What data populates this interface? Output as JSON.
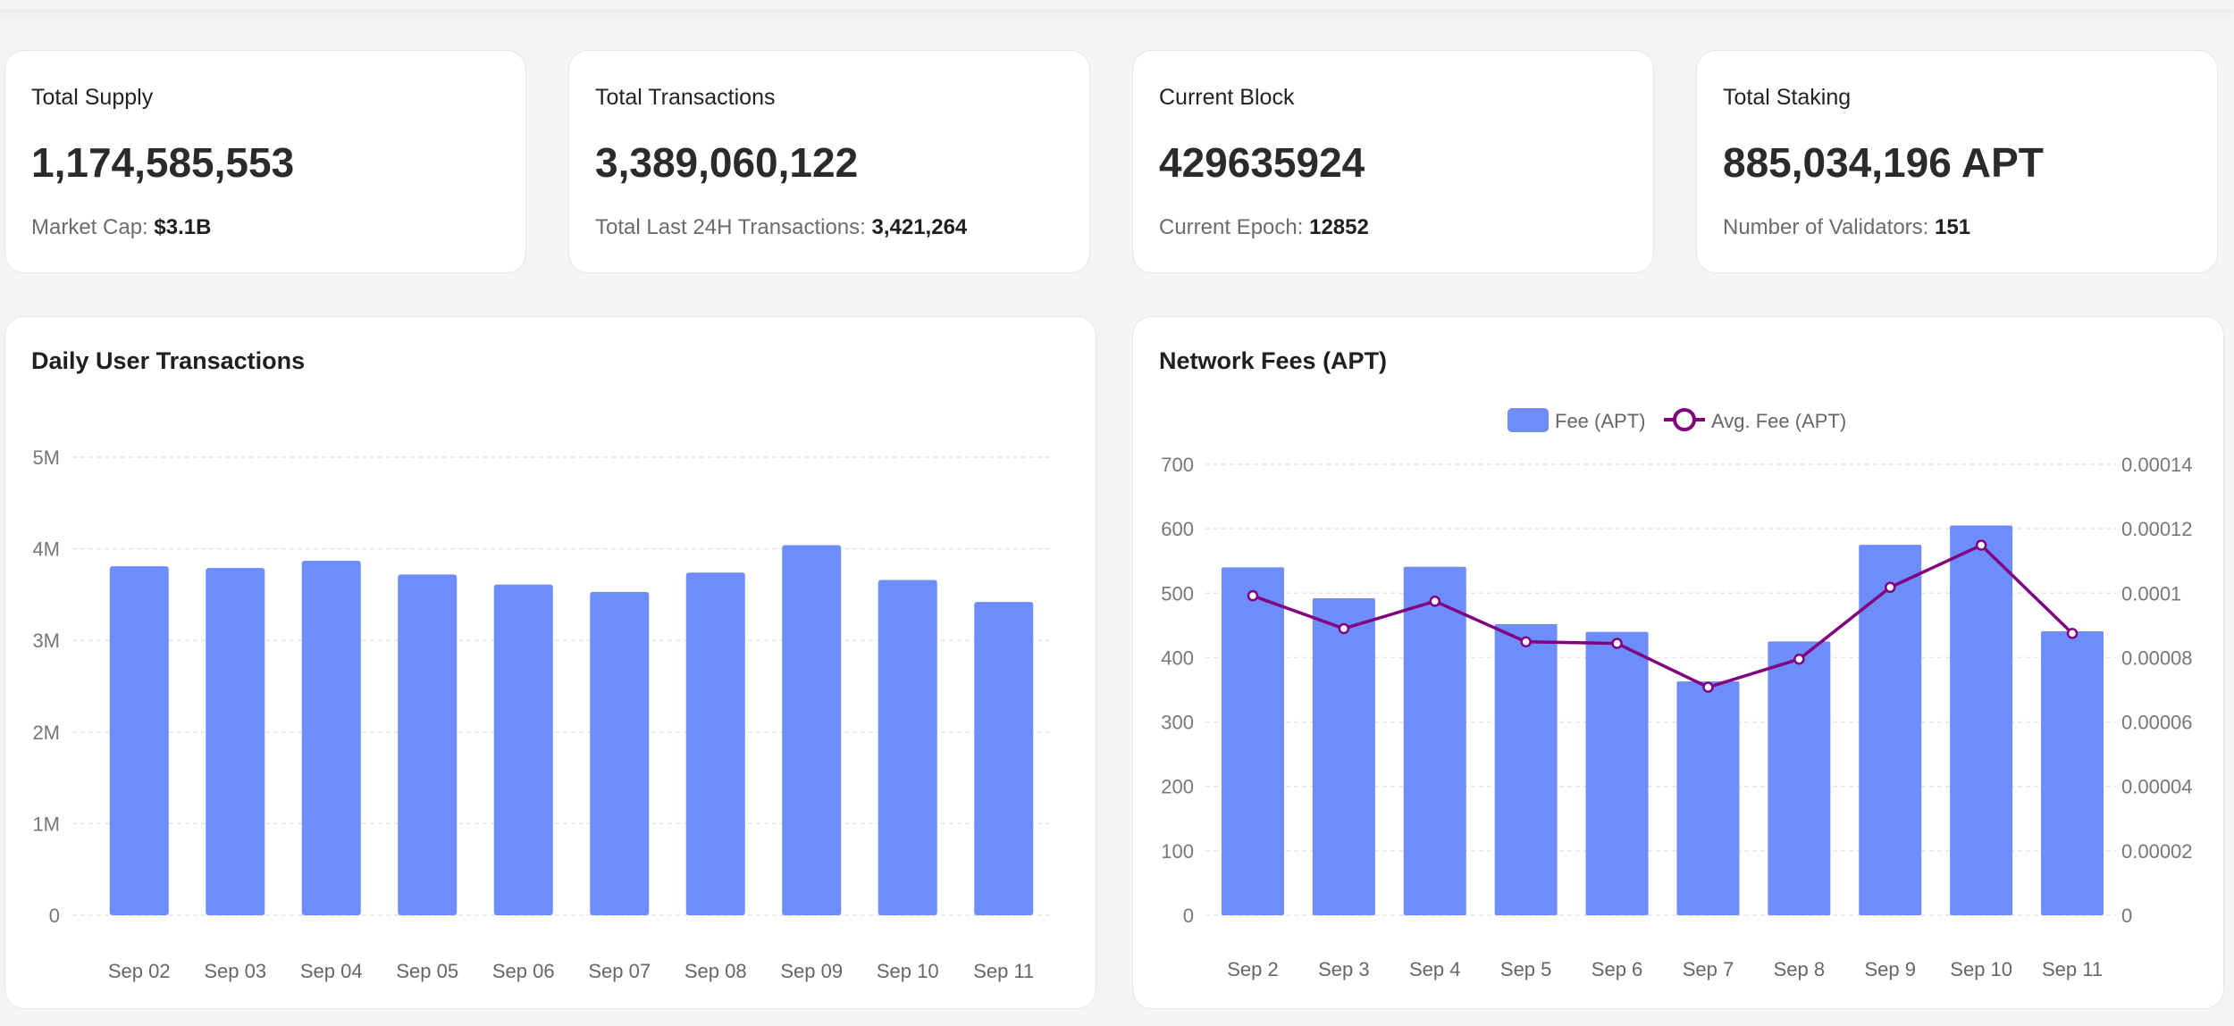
{
  "stats": [
    {
      "label": "Total Supply",
      "value": "1,174,585,553",
      "sub_label": "Market Cap: ",
      "sub_value": "$3.1B"
    },
    {
      "label": "Total Transactions",
      "value": "3,389,060,122",
      "sub_label": "Total Last 24H Transactions: ",
      "sub_value": "3,421,264"
    },
    {
      "label": "Current Block",
      "value": "429635924",
      "sub_label": "Current Epoch: ",
      "sub_value": "12852"
    },
    {
      "label": "Total Staking",
      "value": "885,034,196 APT",
      "sub_label": "Number of Validators: ",
      "sub_value": "151"
    }
  ],
  "daily_tx": {
    "title": "Daily User Transactions",
    "y_ticks": [
      "0",
      "1M",
      "2M",
      "3M",
      "4M",
      "5M"
    ]
  },
  "fees": {
    "title": "Network Fees (APT)",
    "legend": {
      "bar": "Fee (APT)",
      "line": "Avg. Fee (APT)"
    },
    "y_left_ticks": [
      "0",
      "100",
      "200",
      "300",
      "400",
      "500",
      "600",
      "700"
    ],
    "y_right_ticks": [
      "0",
      "0.00002",
      "0.00004",
      "0.00006",
      "0.00008",
      "0.0001",
      "0.00012",
      "0.00014"
    ]
  },
  "colors": {
    "bar": "#6f8cfb",
    "line": "#800080",
    "grid": "#e5e5e5"
  },
  "chart_data": [
    {
      "type": "bar",
      "title": "Daily User Transactions",
      "categories": [
        "Sep 02",
        "Sep 03",
        "Sep 04",
        "Sep 05",
        "Sep 06",
        "Sep 07",
        "Sep 08",
        "Sep 09",
        "Sep 10",
        "Sep 11"
      ],
      "values": [
        3810000,
        3790000,
        3870000,
        3720000,
        3610000,
        3530000,
        3740000,
        4040000,
        3660000,
        3420000
      ],
      "ylim": [
        0,
        5000000
      ],
      "grid": true
    },
    {
      "type": "bar",
      "title": "Network Fees (APT)",
      "categories": [
        "Sep 2",
        "Sep 3",
        "Sep 4",
        "Sep 5",
        "Sep 6",
        "Sep 7",
        "Sep 8",
        "Sep 9",
        "Sep 10",
        "Sep 11"
      ],
      "series": [
        {
          "name": "Fee (APT)",
          "type": "bar",
          "axis": "left",
          "values": [
            540,
            492,
            541,
            452,
            440,
            363,
            425,
            575,
            605,
            441
          ]
        },
        {
          "name": "Avg. Fee (APT)",
          "type": "line",
          "axis": "right",
          "values": [
            9.92e-05,
            8.9e-05,
            9.75e-05,
            8.49e-05,
            8.44e-05,
            7.08e-05,
            7.95e-05,
            0.0001018,
            0.0001149,
            8.75e-05
          ]
        }
      ],
      "ylim_left": [
        0,
        700
      ],
      "ylim_right": [
        0,
        0.00014
      ],
      "legend_position": "top-center",
      "grid": true
    }
  ]
}
